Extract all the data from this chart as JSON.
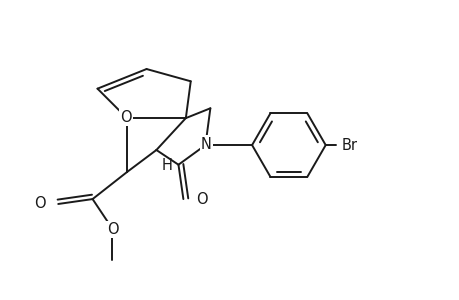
{
  "bg_color": "#ffffff",
  "line_color": "#1a1a1a",
  "line_width": 1.4,
  "font_size": 10.5,
  "figsize": [
    4.6,
    3.0
  ],
  "dpi": 100,
  "xlim": [
    0,
    9.2
  ],
  "ylim": [
    0,
    6.0
  ]
}
